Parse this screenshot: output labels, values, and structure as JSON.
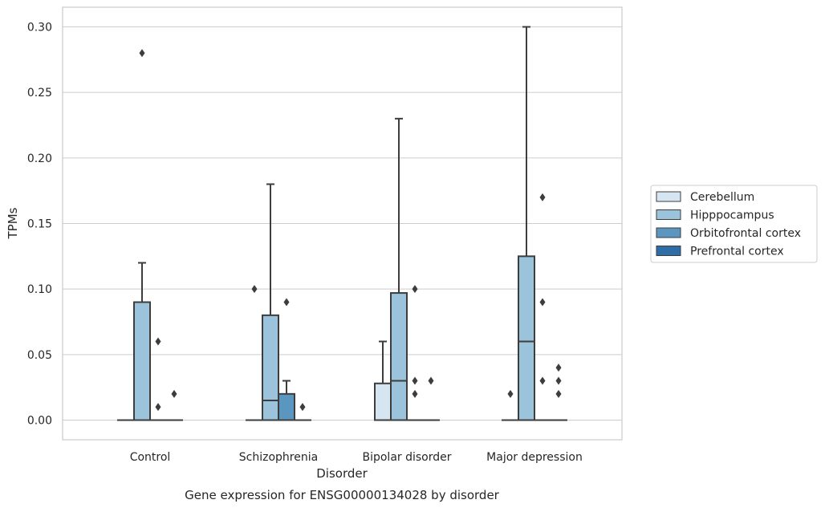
{
  "chart_data": {
    "type": "box",
    "title": "Gene expression for ENSG00000134028 by disorder",
    "xlabel": "Disorder",
    "ylabel": "TPMs",
    "ylim": [
      -0.015,
      0.315
    ],
    "yticks": [
      "0.00",
      "0.05",
      "0.10",
      "0.15",
      "0.20",
      "0.25",
      "0.30"
    ],
    "ytick_values": [
      0,
      0.05,
      0.1,
      0.15,
      0.2,
      0.25,
      0.3
    ],
    "grid": "horizontal",
    "legend_position": "right",
    "categories": [
      "Control",
      "Schizophrenia",
      "Bipolar disorder",
      "Major depression"
    ],
    "series": [
      {
        "name": "Cerebellum",
        "color": "#d6e5f2",
        "boxes": [
          {
            "q1": 0,
            "median": 0,
            "q3": 0,
            "whislo": 0,
            "whishi": 0,
            "fliers": []
          },
          {
            "q1": 0,
            "median": 0,
            "q3": 0,
            "whislo": 0,
            "whishi": 0,
            "fliers": [
              0.1
            ]
          },
          {
            "q1": 0,
            "median": 0,
            "q3": 0.028,
            "whislo": 0,
            "whishi": 0.06,
            "fliers": []
          },
          {
            "q1": 0,
            "median": 0,
            "q3": 0,
            "whislo": 0,
            "whishi": 0,
            "fliers": [
              0.02
            ]
          }
        ]
      },
      {
        "name": "Hipppocampus",
        "color": "#9bc3db",
        "boxes": [
          {
            "q1": 0,
            "median": 0,
            "q3": 0.09,
            "whislo": 0,
            "whishi": 0.12,
            "fliers": [
              0.28
            ]
          },
          {
            "q1": 0,
            "median": 0.015,
            "q3": 0.08,
            "whislo": 0,
            "whishi": 0.18,
            "fliers": []
          },
          {
            "q1": 0,
            "median": 0.03,
            "q3": 0.097,
            "whislo": 0,
            "whishi": 0.23,
            "fliers": []
          },
          {
            "q1": 0,
            "median": 0.06,
            "q3": 0.125,
            "whislo": 0,
            "whishi": 0.3,
            "fliers": []
          }
        ]
      },
      {
        "name": "Orbitofrontal cortex",
        "color": "#5b96c0",
        "boxes": [
          {
            "q1": 0,
            "median": 0,
            "q3": 0,
            "whislo": 0,
            "whishi": 0,
            "fliers": [
              0.06,
              0.01
            ]
          },
          {
            "q1": 0,
            "median": 0,
            "q3": 0.02,
            "whislo": 0,
            "whishi": 0.03,
            "fliers": [
              0.09
            ]
          },
          {
            "q1": 0,
            "median": 0,
            "q3": 0,
            "whislo": 0,
            "whishi": 0,
            "fliers": [
              0.1,
              0.03,
              0.02
            ]
          },
          {
            "q1": 0,
            "median": 0,
            "q3": 0,
            "whislo": 0,
            "whishi": 0,
            "fliers": [
              0.17,
              0.09,
              0.03
            ]
          }
        ]
      },
      {
        "name": "Prefrontal cortex",
        "color": "#2e6da6",
        "boxes": [
          {
            "q1": 0,
            "median": 0,
            "q3": 0,
            "whislo": 0,
            "whishi": 0,
            "fliers": [
              0.02
            ]
          },
          {
            "q1": 0,
            "median": 0,
            "q3": 0,
            "whislo": 0,
            "whishi": 0,
            "fliers": [
              0.01
            ]
          },
          {
            "q1": 0,
            "median": 0,
            "q3": 0,
            "whislo": 0,
            "whishi": 0,
            "fliers": [
              0.03
            ]
          },
          {
            "q1": 0,
            "median": 0,
            "q3": 0,
            "whislo": 0,
            "whishi": 0,
            "fliers": [
              0.04,
              0.03,
              0.02
            ]
          }
        ]
      }
    ],
    "colors": {
      "edge": "#3d3d3d",
      "grid": "#cccccc",
      "axes_border": "#cccccc",
      "text": "#262626"
    }
  }
}
